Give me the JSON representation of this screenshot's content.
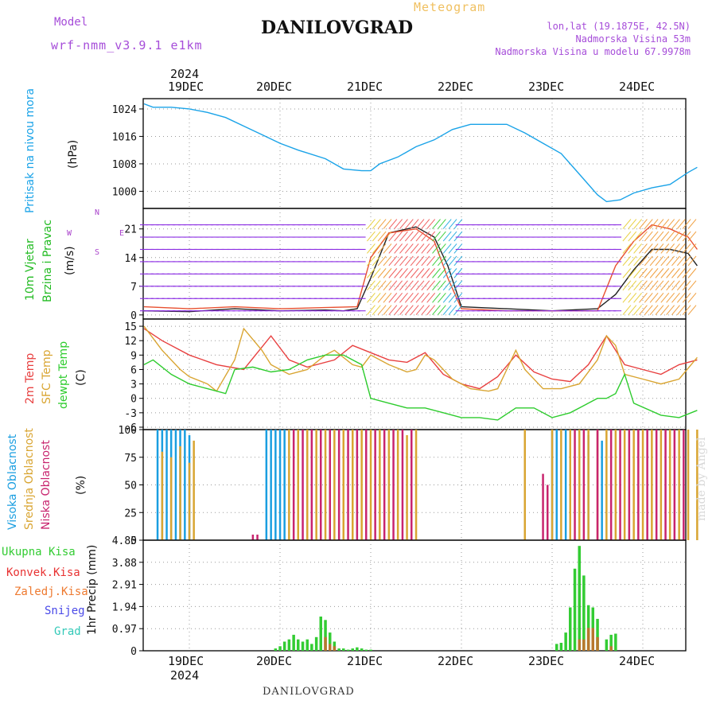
{
  "header": {
    "model_label": "Model",
    "model_name": "wrf-nmm_v3.9.1 e1km",
    "title": "DANILOVGRAD",
    "subtitle": "Meteogram",
    "coords": "lon,lat (19.1875E, 42.5N)",
    "altitude": "Nadmorska Visina 53m",
    "model_altitude": "Nadmorska Visina u modelu 67.9978m",
    "year": "2024"
  },
  "footer": {
    "station": "DANILOVGRAD",
    "credit": "made by Angel",
    "year": "2024"
  },
  "day_labels": [
    "19DEC",
    "20DEC",
    "21DEC",
    "22DEC",
    "23DEC",
    "24DEC"
  ],
  "panel_labels": {
    "pressure": [
      "Pritisak na nivou mora",
      "(hPa)"
    ],
    "wind": [
      "10m Vjetar",
      "Brzina i Pravac",
      "(m/s)"
    ],
    "compass": [
      "N",
      "W",
      "E",
      "S"
    ],
    "temp": [
      "2m Temp",
      "SFC Temp",
      "dewpt Temp",
      "(C)"
    ],
    "cloud": [
      "Visoka Oblacnost",
      "Srednja Oblacnost",
      "Niska Oblacnost",
      "(%)"
    ],
    "precip_ylabel": "1hr Precip (mm)",
    "precip_legend": [
      "Ukupna Kisa",
      "Konvek.Kisa",
      "Zaledj.Kisa",
      "Snijeg",
      "Grad"
    ]
  },
  "colors": {
    "pressure": "#1aa3e8",
    "temp2m": "#e84040",
    "sfc": "#d9a532",
    "dewpt": "#2ecc2e",
    "high_cloud": "#1a9ee0",
    "mid_cloud": "#d9a532",
    "low_cloud": "#c8246e",
    "total_rain": "#33cc33",
    "conv_rain": "#e83232",
    "frz_rain": "#ee7a30",
    "snow": "#4a4ae8",
    "hail": "#33c9b8",
    "wind_label": "#22bb22",
    "compass": "#aa44cc",
    "title_purple": "#a64dd9",
    "meteogram": "#f0c060"
  },
  "chart_data": [
    {
      "type": "line",
      "title": "Pritisak na nivou mora",
      "ylabel": "(hPa)",
      "yticks": [
        1000,
        1008,
        1016,
        1024
      ],
      "ylim": [
        995,
        1027
      ],
      "x_unit": "days from 19DEC 00 UTC",
      "series": [
        {
          "x": [
            -0.5,
            -0.4,
            -0.2,
            0,
            0.2,
            0.4,
            0.6,
            0.8,
            1.0,
            1.2,
            1.5,
            1.7,
            1.9,
            2.0,
            2.1,
            2.3,
            2.5,
            2.7,
            2.9,
            3.1,
            3.3,
            3.5,
            3.7,
            3.9,
            4.1,
            4.3,
            4.5,
            4.6,
            4.75,
            4.9,
            5.1,
            5.3,
            5.5,
            5.6
          ],
          "values": [
            1025.5,
            1024.5,
            1024.5,
            1024,
            1023,
            1021.5,
            1019,
            1016.5,
            1014,
            1012,
            1009.5,
            1006.5,
            1006,
            1006,
            1008,
            1010,
            1013,
            1015,
            1018,
            1019.5,
            1019.5,
            1019.5,
            1017,
            1014,
            1011,
            1005,
            999,
            997,
            997.5,
            999.5,
            1001,
            1002,
            1005.5,
            1007
          ]
        }
      ]
    },
    {
      "type": "line",
      "title": "10m Vjetar Brzina i Pravac",
      "ylabel": "(m/s)",
      "yticks": [
        0,
        7,
        14,
        21
      ],
      "ylim": [
        -1,
        26
      ],
      "x_unit": "days from 19DEC 00 UTC",
      "series": [
        {
          "name": "speed",
          "x": [
            -0.5,
            0,
            0.5,
            1,
            1.5,
            1.7,
            1.85,
            2,
            2.2,
            2.5,
            2.7,
            2.85,
            3,
            3.5,
            4,
            4.5,
            4.7,
            4.9,
            5.1,
            5.3,
            5.5,
            5.6
          ],
          "values": [
            1,
            0.8,
            1.5,
            1,
            1.2,
            1,
            1.5,
            9,
            20,
            21.5,
            19,
            12,
            2,
            1.5,
            1,
            1.5,
            5,
            11,
            16,
            16,
            15,
            12
          ]
        },
        {
          "name": "gust",
          "x": [
            -0.5,
            0,
            0.5,
            1,
            1.5,
            1.85,
            2,
            2.2,
            2.5,
            2.7,
            2.85,
            3,
            3.5,
            4,
            4.5,
            4.7,
            4.9,
            5.1,
            5.3,
            5.5,
            5.6
          ],
          "values": [
            2,
            1.5,
            2,
            1.5,
            1.8,
            2,
            14,
            20,
            21,
            18,
            9,
            1.5,
            1,
            1,
            1,
            12,
            18,
            22,
            21,
            19,
            16
          ]
        }
      ]
    },
    {
      "type": "line",
      "title": "2m Temp / SFC Temp / dewpt Temp",
      "ylabel": "(C)",
      "yticks": [
        -6,
        -3,
        0,
        3,
        6,
        9,
        12,
        15
      ],
      "ylim": [
        -6.5,
        16.5
      ],
      "x_unit": "days from 19DEC 00 UTC",
      "series": [
        {
          "name": "2m Temp",
          "x": [
            -0.5,
            -0.3,
            0,
            0.3,
            0.6,
            0.9,
            1.1,
            1.3,
            1.6,
            1.8,
            2.0,
            2.2,
            2.4,
            2.6,
            2.8,
            3.0,
            3.2,
            3.4,
            3.6,
            3.8,
            4.0,
            4.2,
            4.4,
            4.6,
            4.8,
            5.0,
            5.2,
            5.4,
            5.6
          ],
          "values": [
            14.5,
            12,
            9,
            7,
            6,
            13,
            8,
            6.5,
            8,
            11,
            9.5,
            8,
            7.5,
            9.5,
            5,
            3,
            2,
            4.5,
            9,
            5.5,
            4,
            3.5,
            7,
            13,
            7,
            6,
            5,
            7,
            8
          ]
        },
        {
          "name": "SFC Temp",
          "x": [
            -0.5,
            -0.3,
            -0.1,
            0,
            0.2,
            0.3,
            0.5,
            0.6,
            0.8,
            0.9,
            1.1,
            1.3,
            1.5,
            1.6,
            1.8,
            1.9,
            2.0,
            2.2,
            2.4,
            2.5,
            2.6,
            2.7,
            2.9,
            3.1,
            3.3,
            3.4,
            3.5,
            3.6,
            3.7,
            3.9,
            4.1,
            4.3,
            4.5,
            4.6,
            4.7,
            4.8,
            5.0,
            5.2,
            5.4,
            5.6
          ],
          "values": [
            15,
            10,
            6,
            4.5,
            3,
            1.5,
            8,
            14.5,
            10,
            7,
            5,
            6,
            9,
            10,
            7,
            6.5,
            9,
            7,
            5.5,
            6,
            9,
            8,
            4,
            2,
            1.5,
            2,
            6,
            10,
            6,
            2,
            2,
            3,
            8,
            13,
            11,
            5,
            4,
            3,
            4,
            8.5
          ]
        },
        {
          "name": "dewpt Temp",
          "x": [
            -0.5,
            -0.4,
            -0.2,
            0,
            0.2,
            0.4,
            0.5,
            0.7,
            0.9,
            1.1,
            1.3,
            1.5,
            1.7,
            1.8,
            1.9,
            2.0,
            2.2,
            2.4,
            2.6,
            2.8,
            3.0,
            3.2,
            3.4,
            3.6,
            3.8,
            4.0,
            4.2,
            4.4,
            4.5,
            4.6,
            4.7,
            4.8,
            4.9,
            5.2,
            5.4,
            5.6
          ],
          "values": [
            7,
            8,
            5,
            3,
            2,
            1,
            6,
            6.5,
            5.5,
            6,
            8,
            9,
            9,
            8,
            7,
            0,
            -1,
            -2,
            -2,
            -3,
            -4,
            -4,
            -4.5,
            -2,
            -2,
            -4,
            -3,
            -1,
            0,
            0,
            1,
            5,
            -1,
            -3.5,
            -4,
            -2.5
          ]
        }
      ]
    },
    {
      "type": "bar",
      "title": "Visoka / Srednja / Niska Oblacnost",
      "ylabel": "(%)",
      "yticks": [
        0,
        25,
        50,
        75,
        100
      ],
      "ylim": [
        0,
        100
      ],
      "x_unit": "days from 19DEC 00 UTC",
      "series": [
        {
          "name": "Visoka Oblacnost",
          "x": [
            -0.35,
            -0.3,
            -0.25,
            -0.2,
            -0.15,
            -0.1,
            -0.05,
            0,
            0.85,
            0.9,
            0.95,
            1.0,
            1.05,
            4.0,
            4.05,
            4.15,
            4.3,
            4.4,
            4.55
          ],
          "values": [
            100,
            100,
            100,
            100,
            100,
            100,
            100,
            95,
            100,
            100,
            100,
            100,
            100,
            100,
            100,
            100,
            100,
            95,
            90
          ]
        },
        {
          "name": "Srednja Oblacnost",
          "x": [
            -0.3,
            -0.2,
            -0.1,
            0,
            0.05,
            1.1,
            1.2,
            1.3,
            1.4,
            1.5,
            1.6,
            1.7,
            1.8,
            1.9,
            2.0,
            2.1,
            2.2,
            2.3,
            2.4,
            2.5,
            3.7,
            4.0,
            4.1,
            4.2,
            4.3,
            4.4,
            4.5,
            4.6,
            4.7,
            4.8,
            4.9,
            5.0,
            5.1,
            5.2,
            5.3,
            5.4,
            5.5,
            5.6
          ],
          "values": [
            80,
            75,
            85,
            70,
            90,
            100,
            100,
            100,
            100,
            100,
            100,
            100,
            100,
            100,
            100,
            100,
            100,
            100,
            95,
            100,
            100,
            100,
            100,
            100,
            100,
            100,
            100,
            100,
            100,
            100,
            100,
            100,
            100,
            100,
            100,
            100,
            100,
            100
          ]
        },
        {
          "name": "Niska Oblacnost",
          "x": [
            0.7,
            0.75,
            1.15,
            1.25,
            1.35,
            1.45,
            1.55,
            1.65,
            1.75,
            1.85,
            1.95,
            2.05,
            2.15,
            2.25,
            2.35,
            2.45,
            3.9,
            3.95,
            4.25,
            4.35,
            4.5,
            4.65,
            4.75,
            4.85,
            4.95,
            5.05,
            5.15,
            5.25,
            5.35,
            5.45
          ],
          "values": [
            5,
            5,
            100,
            100,
            100,
            100,
            100,
            100,
            100,
            100,
            100,
            100,
            100,
            100,
            100,
            100,
            60,
            50,
            100,
            100,
            100,
            100,
            100,
            100,
            100,
            100,
            100,
            100,
            100,
            100
          ]
        }
      ]
    },
    {
      "type": "bar",
      "title": "1hr Precip",
      "ylabel": "1hr Precip (mm)",
      "yticks": [
        0,
        0.97,
        1.94,
        2.91,
        3.88,
        4.85
      ],
      "ylim": [
        0,
        4.85
      ],
      "x_unit": "days from 19DEC 00 UTC",
      "series": [
        {
          "name": "Ukupna Kisa",
          "x": [
            0.95,
            1.0,
            1.05,
            1.1,
            1.15,
            1.2,
            1.25,
            1.3,
            1.35,
            1.4,
            1.45,
            1.5,
            1.55,
            1.6,
            1.65,
            1.7,
            1.75,
            1.8,
            1.85,
            1.9,
            1.95,
            2.0,
            4.05,
            4.1,
            4.15,
            4.2,
            4.25,
            4.3,
            4.35,
            4.4,
            4.45,
            4.5,
            4.6,
            4.65,
            4.7
          ],
          "values": [
            0.1,
            0.2,
            0.4,
            0.5,
            0.7,
            0.5,
            0.4,
            0.5,
            0.3,
            0.6,
            1.5,
            1.35,
            0.8,
            0.4,
            0.1,
            0.1,
            0.05,
            0.1,
            0.15,
            0.1,
            0.05,
            0.05,
            0.3,
            0.35,
            0.8,
            1.9,
            3.6,
            4.6,
            3.3,
            2.0,
            1.9,
            1.4,
            0.5,
            0.7,
            0.75
          ]
        },
        {
          "name": "Konvek.Kisa",
          "x": [
            1.5,
            1.55,
            1.6,
            4.3,
            4.35,
            4.4,
            4.45,
            4.5,
            4.65
          ],
          "values": [
            0.6,
            0.3,
            0.2,
            0.5,
            0.5,
            1.0,
            1.0,
            0.6,
            0.2
          ]
        }
      ]
    }
  ]
}
